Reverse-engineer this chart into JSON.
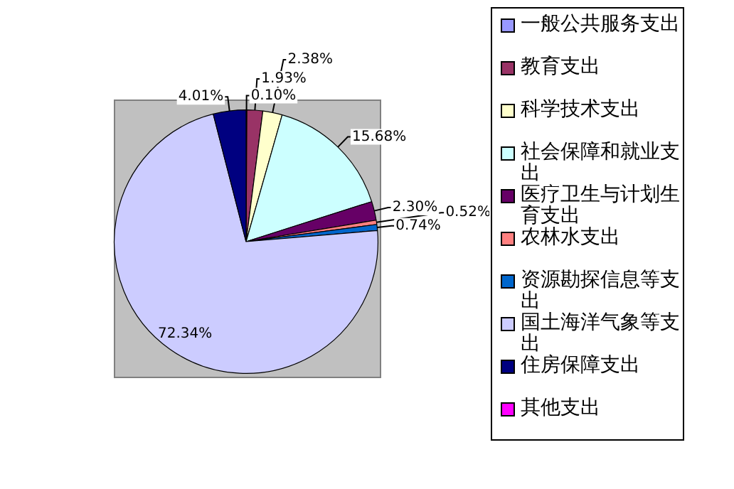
{
  "chart_data": {
    "type": "pie",
    "categories": [
      "一般公共服务支出",
      "教育支出",
      "科学技术支出",
      "社会保障和就业支出",
      "医疗卫生与计划生育支出",
      "农林水支出",
      "资源勘探信息等支出",
      "国土海洋气象等支出",
      "住房保障支出",
      "其他支出"
    ],
    "values": [
      0.1,
      1.93,
      2.38,
      15.68,
      2.3,
      0.52,
      0.74,
      72.34,
      4.01,
      null
    ],
    "value_labels": [
      "0.10%",
      "1.93%",
      "2.38%",
      "15.68%",
      "2.30%",
      "0.52%",
      "0.74%",
      "72.34%",
      "4.01%",
      null
    ],
    "colors": [
      "#9999ff",
      "#993366",
      "#ffffcc",
      "#ccffff",
      "#660066",
      "#ff8080",
      "#0066cc",
      "#ccccff",
      "#000080",
      "#ff00ff"
    ],
    "legend": "right"
  }
}
